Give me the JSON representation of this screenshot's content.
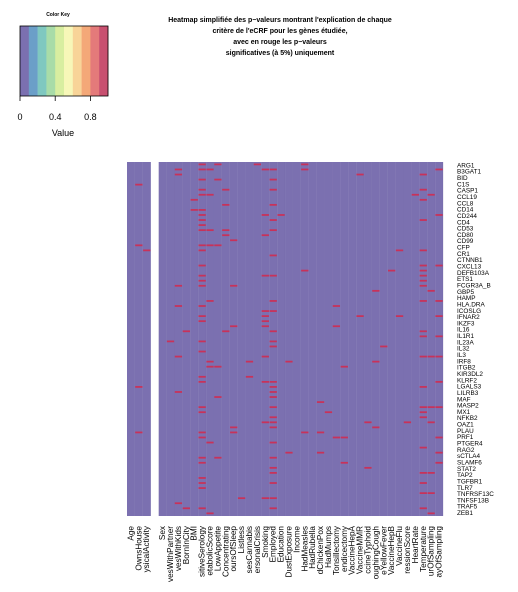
{
  "chart_data": {
    "type": "heatmap",
    "title_lines": [
      "Heatmap simplifiée des p−valeurs montrant l'explication de chaque",
      "critère de l'eCRF pour les gènes étudiée,",
      "avec en rouge les p−valeurs",
      "significatives (à 5%) uniquement"
    ],
    "color_key": {
      "title": "Color Key",
      "xlabel": "Value",
      "ticks": [
        "0",
        "0.4",
        "0.8"
      ],
      "range": [
        0,
        1
      ],
      "colors": [
        "#7b70b0",
        "#6b9fc8",
        "#7fc8c0",
        "#a8dca8",
        "#d8eea0",
        "#f7f7b8",
        "#f8d498",
        "#f4a878",
        "#e47a7a",
        "#c85070"
      ]
    },
    "colors": {
      "low": "#7b70b0",
      "significant": "#c8325a",
      "gap": "#ffffff"
    },
    "columns": [
      "Age",
      "OwnsHouse",
      "PhysicalActivity",
      "Sex",
      "LivesWithPartner",
      "LivesWithKids",
      "BornInCity",
      "BMI",
      "PositiveSerology",
      "MetabolicScore",
      "LowAppetite",
      "DifficultyConcentrating",
      "HoursOfSleep",
      "Listless",
      "UsesCannabis",
      "PersonalCrisis",
      "Smoking",
      "Employed",
      "Education",
      "DustExposure",
      "Income",
      "HadMeasles",
      "HadRubella",
      "HadChickenPox",
      "HadMumps",
      "HadTonsillectomy",
      "HadAppendicectomy",
      "VaccineHepA",
      "VaccineMMR",
      "VaccineTyphoid",
      "CoughingCough",
      "VaccineYellowFever",
      "VaccineHepB",
      "VaccineFlu",
      "DepressionScore",
      "HeartRate",
      "Temperature",
      "HourOfSampling",
      "DayOfSampling"
    ],
    "column_labels": [
      "Age",
      "OwnsHouse",
      "ysicalActivity",
      "Sex",
      "vesWithPartner",
      "vesWithKids",
      "BornInCity",
      "BMI",
      "sitiveSerology",
      "etabolicScore",
      "LowAppetite",
      "Concentrating",
      "oursOfSleep",
      "Listless",
      "sesCannabis",
      "ersonalCrisis",
      "Smoking",
      "Employed",
      "Education",
      "DustExposure",
      "Income",
      "HadMeasles",
      "HadRubella",
      "dChickenPox",
      "HadMumps",
      "Tonsillectomy",
      "endicectomy",
      "VaccineHepA",
      "VaccineMMR",
      "ccineTyphoid",
      "oughingCough",
      "eYellowFever",
      "VaccineHepB",
      "VaccineFlu",
      "ressionScore",
      "HeartRate",
      "Temperature",
      "urOfSampling",
      "ayOfSampling"
    ],
    "gap_after_column": 2,
    "rows": [
      "ARG1",
      "B3GAT1",
      "BID",
      "C1S",
      "CASP1",
      "CCL19",
      "CCL8",
      "CD14",
      "CD244",
      "CD4",
      "CD53",
      "CD80",
      "CD99",
      "CFP",
      "CR1",
      "CTNNB1",
      "CXCL13",
      "DEFB103A",
      "ETS1",
      "FCGR3A_B",
      "GBP5",
      "HAMP",
      "HLA.DRA",
      "ICOSLG",
      "IFNAR2",
      "IKZF3",
      "IL16",
      "IL1R1",
      "IL23A",
      "IL32",
      "IL3",
      "IRF8",
      "ITGB2",
      "KIR3DL2",
      "KLRF2",
      "LGALS3",
      "LILRB3",
      "MAF",
      "MASP2",
      "MX1",
      "NFKB2",
      "OAZ1",
      "PLAU",
      "PRF1",
      "PTGER4",
      "RAG2",
      "sCTLA4",
      "SLAMF6",
      "STAT2",
      "TAP2",
      "TGFBR1",
      "TLR7",
      "TNFRSF13C",
      "TNFSF13B",
      "TRAF5",
      "ZEB1"
    ],
    "n_row_slots": 70,
    "significance_rate_by_column": [
      0.0,
      0.03,
      0.01,
      0.01,
      0.01,
      0.06,
      0.02,
      0.02,
      0.55,
      0.12,
      0.04,
      0.04,
      0.05,
      0.02,
      0.03,
      0.04,
      0.1,
      0.35,
      0.02,
      0.02,
      0.01,
      0.02,
      0.01,
      0.02,
      0.02,
      0.02,
      0.03,
      0.02,
      0.02,
      0.02,
      0.01,
      0.02,
      0.02,
      0.03,
      0.03,
      0.04,
      0.38,
      0.12,
      0.18
    ],
    "value_range": [
      0,
      1
    ]
  }
}
